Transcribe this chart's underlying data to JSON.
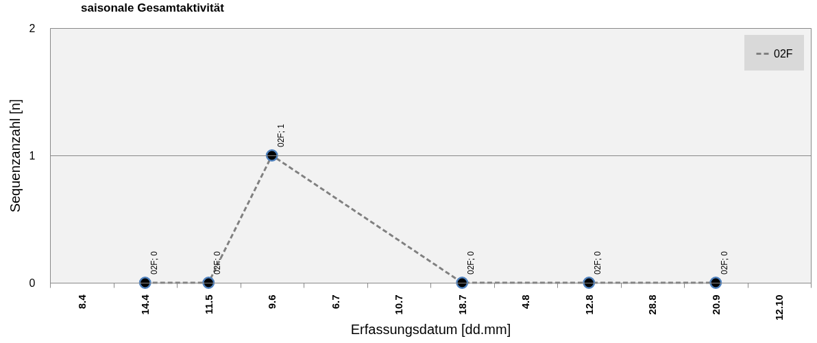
{
  "chart_data": {
    "type": "line",
    "title": "saisonale  Gesamtaktivität",
    "xlabel": "Erfassungsdatum [dd.mm]",
    "ylabel": "Sequenzanzahl  [n]",
    "categories": [
      "8.4",
      "14.4",
      "11.5",
      "9.6",
      "6.7",
      "10.7",
      "18.7",
      "4.8",
      "12.8",
      "28.8",
      "20.9",
      "12.10"
    ],
    "series": [
      {
        "name": "02F",
        "color": "#808080",
        "values": [
          null,
          0,
          0,
          1,
          null,
          null,
          0,
          null,
          0,
          null,
          0,
          null
        ],
        "value_labels": [
          null,
          "02F; 0",
          "02F; 0",
          "02F; 1",
          null,
          null,
          "02F; 0",
          null,
          "02F; 0",
          null,
          "02F; 0",
          null
        ]
      }
    ],
    "ylim": [
      0,
      2
    ],
    "yticks": [
      0,
      1,
      2
    ],
    "grid": "y",
    "legend": "top right",
    "marker": "circle",
    "line_style": "dashed"
  }
}
